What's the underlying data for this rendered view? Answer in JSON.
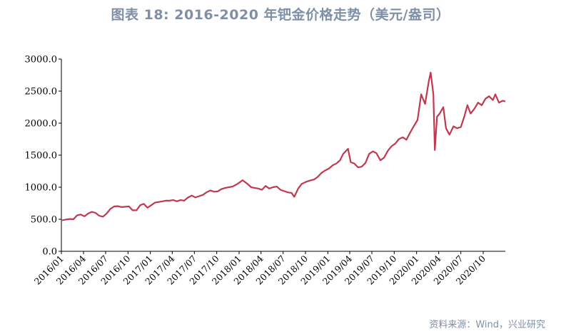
{
  "chart_data": {
    "type": "line",
    "title": "图表 18: 2016-2020 年钯金价格走势（美元/盎司）",
    "source": "资料来源：Wind，兴业研究",
    "ylim": [
      0,
      3000
    ],
    "y_ticks": [
      "0.0",
      "500.0",
      "1000.0",
      "1500.0",
      "2000.0",
      "2500.0",
      "3000.0"
    ],
    "x_ticks": [
      "2016/01",
      "2016/04",
      "2016/07",
      "2016/10",
      "2017/01",
      "2017/04",
      "2017/07",
      "2017/10",
      "2018/01",
      "2018/04",
      "2018/07",
      "2018/10",
      "2019/01",
      "2019/04",
      "2019/07",
      "2019/10",
      "2020/01",
      "2020/04",
      "2020/07",
      "2020/10"
    ],
    "x_range": [
      "2016-01-01",
      "2020-12-31"
    ],
    "grid": false,
    "series": [
      {
        "color": "#c0394e",
        "points": [
          [
            "2016-01-04",
            485
          ],
          [
            "2016-01-20",
            495
          ],
          [
            "2016-02-05",
            505
          ],
          [
            "2016-02-20",
            500
          ],
          [
            "2016-03-05",
            560
          ],
          [
            "2016-03-20",
            575
          ],
          [
            "2016-04-05",
            545
          ],
          [
            "2016-04-20",
            590
          ],
          [
            "2016-05-05",
            615
          ],
          [
            "2016-05-20",
            600
          ],
          [
            "2016-06-05",
            555
          ],
          [
            "2016-06-20",
            540
          ],
          [
            "2016-07-05",
            590
          ],
          [
            "2016-07-20",
            660
          ],
          [
            "2016-08-05",
            700
          ],
          [
            "2016-08-20",
            705
          ],
          [
            "2016-09-05",
            690
          ],
          [
            "2016-09-20",
            695
          ],
          [
            "2016-10-05",
            700
          ],
          [
            "2016-10-20",
            640
          ],
          [
            "2016-11-05",
            640
          ],
          [
            "2016-11-20",
            720
          ],
          [
            "2016-12-05",
            740
          ],
          [
            "2016-12-20",
            680
          ],
          [
            "2017-01-05",
            720
          ],
          [
            "2017-01-20",
            760
          ],
          [
            "2017-02-05",
            770
          ],
          [
            "2017-02-20",
            780
          ],
          [
            "2017-03-05",
            790
          ],
          [
            "2017-03-20",
            790
          ],
          [
            "2017-04-05",
            800
          ],
          [
            "2017-04-20",
            780
          ],
          [
            "2017-05-05",
            800
          ],
          [
            "2017-05-20",
            790
          ],
          [
            "2017-06-05",
            840
          ],
          [
            "2017-06-20",
            870
          ],
          [
            "2017-07-05",
            840
          ],
          [
            "2017-07-20",
            860
          ],
          [
            "2017-08-05",
            880
          ],
          [
            "2017-08-20",
            920
          ],
          [
            "2017-09-05",
            950
          ],
          [
            "2017-09-20",
            930
          ],
          [
            "2017-10-05",
            935
          ],
          [
            "2017-10-20",
            970
          ],
          [
            "2017-11-05",
            990
          ],
          [
            "2017-11-20",
            1000
          ],
          [
            "2017-12-05",
            1010
          ],
          [
            "2017-12-20",
            1040
          ],
          [
            "2018-01-05",
            1080
          ],
          [
            "2018-01-15",
            1110
          ],
          [
            "2018-02-05",
            1050
          ],
          [
            "2018-02-20",
            1000
          ],
          [
            "2018-03-05",
            990
          ],
          [
            "2018-03-20",
            980
          ],
          [
            "2018-04-05",
            960
          ],
          [
            "2018-04-20",
            1020
          ],
          [
            "2018-05-05",
            980
          ],
          [
            "2018-05-20",
            1000
          ],
          [
            "2018-06-05",
            1010
          ],
          [
            "2018-06-20",
            960
          ],
          [
            "2018-07-05",
            940
          ],
          [
            "2018-07-20",
            920
          ],
          [
            "2018-08-05",
            910
          ],
          [
            "2018-08-16",
            850
          ],
          [
            "2018-09-01",
            980
          ],
          [
            "2018-09-15",
            1050
          ],
          [
            "2018-10-01",
            1080
          ],
          [
            "2018-10-15",
            1100
          ],
          [
            "2018-11-05",
            1120
          ],
          [
            "2018-11-20",
            1160
          ],
          [
            "2018-12-05",
            1220
          ],
          [
            "2018-12-20",
            1260
          ],
          [
            "2019-01-05",
            1290
          ],
          [
            "2019-01-20",
            1340
          ],
          [
            "2019-02-05",
            1370
          ],
          [
            "2019-02-20",
            1420
          ],
          [
            "2019-03-05",
            1520
          ],
          [
            "2019-03-20",
            1580
          ],
          [
            "2019-03-25",
            1600
          ],
          [
            "2019-04-05",
            1390
          ],
          [
            "2019-04-20",
            1370
          ],
          [
            "2019-05-05",
            1310
          ],
          [
            "2019-05-20",
            1320
          ],
          [
            "2019-06-05",
            1380
          ],
          [
            "2019-06-20",
            1520
          ],
          [
            "2019-07-05",
            1560
          ],
          [
            "2019-07-20",
            1530
          ],
          [
            "2019-08-05",
            1420
          ],
          [
            "2019-08-20",
            1460
          ],
          [
            "2019-09-05",
            1570
          ],
          [
            "2019-09-20",
            1640
          ],
          [
            "2019-10-05",
            1680
          ],
          [
            "2019-10-20",
            1750
          ],
          [
            "2019-11-05",
            1780
          ],
          [
            "2019-11-20",
            1740
          ],
          [
            "2019-12-05",
            1850
          ],
          [
            "2019-12-20",
            1950
          ],
          [
            "2020-01-05",
            2050
          ],
          [
            "2020-01-20",
            2450
          ],
          [
            "2020-02-05",
            2300
          ],
          [
            "2020-02-20",
            2650
          ],
          [
            "2020-02-28",
            2790
          ],
          [
            "2020-03-10",
            2450
          ],
          [
            "2020-03-16",
            1580
          ],
          [
            "2020-03-25",
            2100
          ],
          [
            "2020-04-05",
            2150
          ],
          [
            "2020-04-20",
            2250
          ],
          [
            "2020-05-01",
            1920
          ],
          [
            "2020-05-15",
            1820
          ],
          [
            "2020-06-01",
            1950
          ],
          [
            "2020-06-15",
            1920
          ],
          [
            "2020-07-01",
            1940
          ],
          [
            "2020-07-15",
            2100
          ],
          [
            "2020-07-28",
            2280
          ],
          [
            "2020-08-10",
            2150
          ],
          [
            "2020-08-25",
            2220
          ],
          [
            "2020-09-10",
            2320
          ],
          [
            "2020-09-25",
            2280
          ],
          [
            "2020-10-10",
            2380
          ],
          [
            "2020-10-25",
            2420
          ],
          [
            "2020-11-10",
            2360
          ],
          [
            "2020-11-20",
            2450
          ],
          [
            "2020-12-05",
            2320
          ],
          [
            "2020-12-20",
            2350
          ],
          [
            "2020-12-31",
            2340
          ]
        ]
      }
    ]
  }
}
